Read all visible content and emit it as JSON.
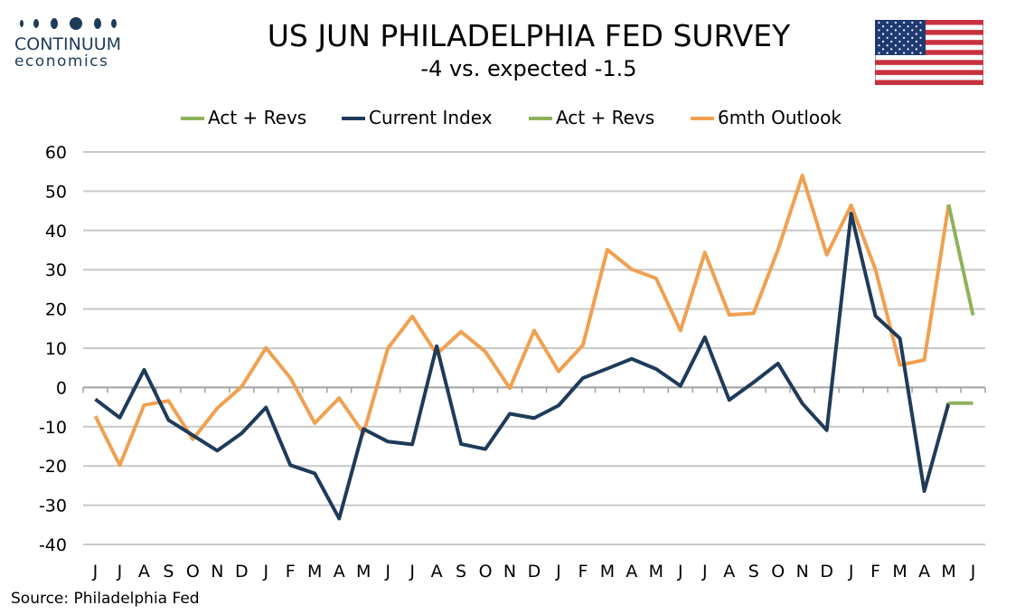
{
  "brand": {
    "name": "CONTINUUM",
    "sub": "economics",
    "dot_color": "#1f3b5a"
  },
  "header": {
    "title": "US JUN PHILADELPHIA FED SURVEY",
    "subtitle": "-4 vs. expected -1.5",
    "flag": "us-flag"
  },
  "source": "Source: Philadelphia Fed",
  "chart_data": {
    "type": "line",
    "legend_position": "top",
    "grid": true,
    "ylim": [
      -40,
      60
    ],
    "yticks": [
      -40,
      -30,
      -20,
      -10,
      0,
      10,
      20,
      30,
      40,
      50,
      60
    ],
    "categories": [
      "J",
      "J",
      "A",
      "S",
      "O",
      "N",
      "D",
      "J",
      "F",
      "M",
      "A",
      "M",
      "J",
      "J",
      "A",
      "S",
      "O",
      "N",
      "D",
      "J",
      "F",
      "M",
      "A",
      "M",
      "J",
      "J",
      "A",
      "S",
      "O",
      "N",
      "D",
      "J",
      "F",
      "M",
      "A",
      "M",
      "J"
    ],
    "series": [
      {
        "name": "Act + Revs",
        "color": "#8db35a",
        "values": [
          null,
          null,
          null,
          null,
          null,
          null,
          null,
          null,
          null,
          null,
          null,
          null,
          null,
          null,
          null,
          null,
          null,
          null,
          null,
          null,
          null,
          null,
          null,
          null,
          null,
          null,
          null,
          null,
          null,
          null,
          null,
          null,
          null,
          null,
          null,
          -4,
          -4
        ]
      },
      {
        "name": "Current Index",
        "color": "#1f3b5a",
        "values": [
          -3,
          -7.7,
          4.5,
          -8.3,
          -12.2,
          -16.1,
          -11.7,
          -5.1,
          -19.8,
          -21.9,
          -33.4,
          -10.6,
          -13.8,
          -14.5,
          10.5,
          -14.4,
          -15.7,
          -6.7,
          -7.8,
          -4.6,
          2.4,
          4.8,
          7.3,
          4.7,
          0.4,
          12.8,
          -3.2,
          1.3,
          6.1,
          -4.1,
          -10.9,
          44.3,
          18.2,
          12.5,
          -26.4,
          -4,
          null
        ]
      },
      {
        "name": "Act + Revs",
        "color": "#8db35a",
        "values": [
          null,
          null,
          null,
          null,
          null,
          null,
          null,
          null,
          null,
          null,
          null,
          null,
          null,
          null,
          null,
          null,
          null,
          null,
          null,
          null,
          null,
          null,
          null,
          null,
          null,
          null,
          null,
          null,
          null,
          null,
          null,
          null,
          null,
          null,
          null,
          46.6,
          18.4
        ]
      },
      {
        "name": "6mth Outlook",
        "color": "#f0a050",
        "values": [
          -7.3,
          -19.8,
          -4.5,
          -3.4,
          -13.2,
          -5.3,
          0.2,
          10.1,
          2.4,
          -9.1,
          -2.7,
          -11.7,
          10,
          18.1,
          8.5,
          14.2,
          9.1,
          -0.2,
          14.5,
          4.1,
          10.8,
          35.1,
          30.1,
          27.8,
          14.5,
          34.4,
          18.5,
          18.9,
          35.1,
          54,
          33.8,
          46.4,
          30,
          5.7,
          7,
          46.6,
          null
        ]
      }
    ]
  }
}
